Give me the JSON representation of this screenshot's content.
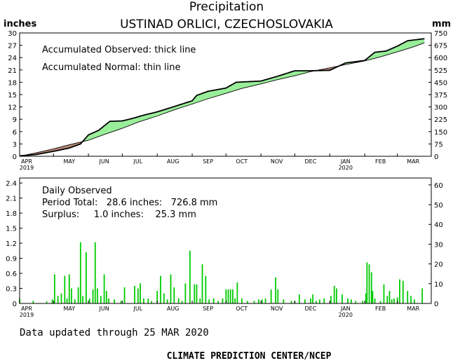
{
  "header": {
    "title": "Precipitation",
    "station": "USTINAD ORLICI, CZECHOSLOVAKIA",
    "left_unit": "inches",
    "right_unit": "mm"
  },
  "top_panel": {
    "legend_observed": "Accumulated Observed: thick line",
    "legend_normal": "Accumulated Normal: thin line",
    "y_ticks_in": [
      "0",
      "3",
      "6",
      "9",
      "12",
      "15",
      "18",
      "21",
      "24",
      "27",
      "30"
    ],
    "y_ticks_mm": [
      "0",
      "75",
      "150",
      "225",
      "300",
      "375",
      "450",
      "525",
      "600",
      "675",
      "750"
    ]
  },
  "bottom_panel": {
    "title": "Daily Observed",
    "period_total": "Period Total:   28.6 inches:   726.8 mm",
    "surplus": "Surplus:     1.0 inches:    25.3 mm",
    "y_ticks_in": [
      "0",
      "0.3",
      "0.6",
      "0.9",
      "1.2",
      "1.5",
      "1.8",
      "2.1",
      "2.4"
    ],
    "y_ticks_mm": [
      "0",
      "10",
      "20",
      "30",
      "40",
      "50",
      "60"
    ]
  },
  "months": [
    "APR",
    "MAY",
    "JUN",
    "JUL",
    "AUG",
    "SEP",
    "OCT",
    "NOV",
    "DEC",
    "JAN",
    "FEB",
    "MAR"
  ],
  "year_labels": {
    "start": "2019",
    "jan": "2020"
  },
  "footer": {
    "updated": "Data updated through 25 MAR 2020",
    "credit": "CLIMATE PREDICTION CENTER/NCEP"
  },
  "colors": {
    "surplus_fill": "#99ee99",
    "deficit_fill": "#bb8877",
    "bar": "#00cc00",
    "axis": "#000000"
  },
  "chart_data": [
    {
      "type": "area",
      "title": "Precipitation",
      "xlabel": "",
      "ylabel": "inches",
      "ylim": [
        0,
        30
      ],
      "y2lim_mm": [
        0,
        750
      ],
      "series": [
        {
          "name": "Accumulated Observed",
          "x": [
            "2019-04-01",
            "2019-04-15",
            "2019-05-01",
            "2019-05-15",
            "2019-05-25",
            "2019-06-01",
            "2019-06-10",
            "2019-06-20",
            "2019-07-01",
            "2019-07-10",
            "2019-07-20",
            "2019-08-01",
            "2019-08-15",
            "2019-09-01",
            "2019-09-05",
            "2019-09-15",
            "2019-10-01",
            "2019-10-10",
            "2019-10-25",
            "2019-11-01",
            "2019-11-15",
            "2019-12-01",
            "2019-12-15",
            "2020-01-01",
            "2020-01-15",
            "2020-02-01",
            "2020-02-10",
            "2020-02-20",
            "2020-03-01",
            "2020-03-10",
            "2020-03-25"
          ],
          "y": [
            0.1,
            0.4,
            1.2,
            2.0,
            3.0,
            5.2,
            6.3,
            8.5,
            8.6,
            9.2,
            10.0,
            10.8,
            12.0,
            13.5,
            14.8,
            15.8,
            16.6,
            18.0,
            18.2,
            18.3,
            19.4,
            20.8,
            20.8,
            20.9,
            22.7,
            23.3,
            25.3,
            25.6,
            26.8,
            28.1,
            28.6
          ]
        },
        {
          "name": "Accumulated Normal",
          "x": [
            "2019-04-01",
            "2019-04-15",
            "2019-05-01",
            "2019-05-15",
            "2019-06-01",
            "2019-06-15",
            "2019-07-01",
            "2019-07-15",
            "2019-08-01",
            "2019-08-15",
            "2019-09-01",
            "2019-09-15",
            "2019-10-01",
            "2019-10-15",
            "2019-11-01",
            "2019-11-15",
            "2019-12-01",
            "2019-12-15",
            "2020-01-01",
            "2020-01-15",
            "2020-02-01",
            "2020-02-15",
            "2020-03-01",
            "2020-03-15",
            "2020-03-25"
          ],
          "y": [
            0.0,
            0.8,
            1.8,
            2.8,
            3.9,
            5.3,
            6.8,
            8.3,
            9.8,
            11.2,
            12.7,
            14.0,
            15.3,
            16.5,
            17.6,
            18.6,
            19.6,
            20.6,
            21.5,
            22.3,
            23.2,
            24.2,
            25.4,
            26.6,
            27.6
          ]
        }
      ]
    },
    {
      "type": "bar",
      "title": "Daily Observed",
      "xlabel": "",
      "ylabel": "inches",
      "ylim": [
        0,
        2.5
      ],
      "y2lim_mm": [
        0,
        63.5
      ],
      "series": [
        {
          "name": "Daily Observed",
          "x": [
            "2019-04-01",
            "2019-04-13",
            "2019-04-25",
            "2019-04-30",
            "2019-05-02",
            "2019-05-05",
            "2019-05-08",
            "2019-05-11",
            "2019-05-13",
            "2019-05-15",
            "2019-05-17",
            "2019-05-20",
            "2019-05-23",
            "2019-05-25",
            "2019-05-27",
            "2019-05-30",
            "2019-06-02",
            "2019-06-05",
            "2019-06-07",
            "2019-06-09",
            "2019-06-12",
            "2019-06-15",
            "2019-06-17",
            "2019-06-19",
            "2019-06-24",
            "2019-06-30",
            "2019-07-03",
            "2019-07-12",
            "2019-07-15",
            "2019-07-17",
            "2019-07-20",
            "2019-07-24",
            "2019-07-27",
            "2019-08-01",
            "2019-08-04",
            "2019-08-07",
            "2019-08-10",
            "2019-08-13",
            "2019-08-16",
            "2019-08-20",
            "2019-08-23",
            "2019-08-26",
            "2019-08-30",
            "2019-09-03",
            "2019-09-05",
            "2019-09-08",
            "2019-09-10",
            "2019-09-13",
            "2019-09-16",
            "2019-09-20",
            "2019-09-24",
            "2019-09-28",
            "2019-10-01",
            "2019-10-03",
            "2019-10-05",
            "2019-10-07",
            "2019-10-09",
            "2019-10-11",
            "2019-10-15",
            "2019-10-20",
            "2019-10-26",
            "2019-10-30",
            "2019-11-02",
            "2019-11-05",
            "2019-11-10",
            "2019-11-14",
            "2019-11-16",
            "2019-11-21",
            "2019-11-28",
            "2019-12-01",
            "2019-12-05",
            "2019-12-10",
            "2019-12-15",
            "2019-12-17",
            "2019-12-20",
            "2019-12-23",
            "2019-12-27",
            "2020-01-02",
            "2020-01-05",
            "2020-01-07",
            "2020-01-12",
            "2020-01-17",
            "2020-01-20",
            "2020-01-24",
            "2020-01-30",
            "2020-02-02",
            "2020-02-03",
            "2020-02-05",
            "2020-02-07",
            "2020-02-08",
            "2020-02-10",
            "2020-02-15",
            "2020-02-18",
            "2020-02-21",
            "2020-02-23",
            "2020-02-25",
            "2020-02-27",
            "2020-03-01",
            "2020-03-03",
            "2020-03-06",
            "2020-03-10",
            "2020-03-13",
            "2020-03-16",
            "2020-03-23"
          ],
          "y": [
            0.1,
            0.05,
            0.04,
            0.08,
            0.58,
            0.15,
            0.2,
            0.55,
            0.1,
            0.58,
            0.3,
            0.08,
            0.32,
            1.22,
            0.15,
            1.02,
            0.1,
            0.28,
            1.22,
            0.3,
            0.15,
            0.58,
            0.25,
            0.1,
            0.08,
            0.05,
            0.32,
            0.35,
            0.3,
            0.4,
            0.1,
            0.1,
            0.05,
            0.25,
            0.55,
            0.2,
            0.08,
            0.58,
            0.32,
            0.1,
            0.05,
            0.4,
            1.05,
            0.38,
            0.38,
            0.1,
            0.78,
            0.55,
            0.08,
            0.1,
            0.05,
            0.1,
            0.28,
            0.28,
            0.28,
            0.28,
            0.1,
            0.42,
            0.1,
            0.05,
            0.05,
            0.08,
            0.08,
            0.1,
            0.28,
            0.52,
            0.28,
            0.08,
            0.05,
            0.05,
            0.18,
            0.08,
            0.1,
            0.18,
            0.05,
            0.08,
            0.1,
            0.15,
            0.35,
            0.3,
            0.18,
            0.1,
            0.08,
            0.05,
            0.05,
            0.2,
            0.82,
            0.78,
            0.62,
            0.25,
            0.1,
            0.05,
            0.38,
            0.15,
            0.25,
            0.08,
            0.1,
            0.12,
            0.48,
            0.45,
            0.25,
            0.15,
            0.08,
            0.3
          ]
        }
      ]
    }
  ]
}
